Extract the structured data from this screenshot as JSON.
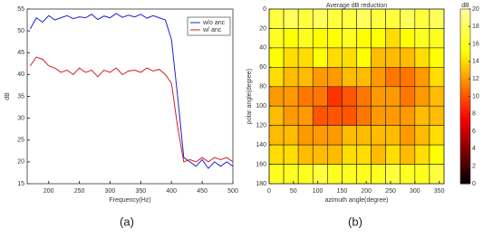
{
  "chart_data": [
    {
      "type": "line",
      "xlabel": "Frequency(Hz)",
      "ylabel": "dB",
      "caption": "(a)",
      "xlim": [
        165,
        500
      ],
      "xticks": [
        200,
        250,
        300,
        350,
        400,
        450,
        500
      ],
      "ylim": [
        15,
        55
      ],
      "yticks": [
        15,
        20,
        25,
        30,
        35,
        40,
        45,
        50,
        55
      ],
      "legend": "upper right",
      "x": [
        170,
        180,
        190,
        200,
        210,
        220,
        230,
        240,
        250,
        260,
        270,
        280,
        290,
        300,
        310,
        320,
        330,
        340,
        350,
        360,
        370,
        380,
        390,
        400,
        410,
        420,
        430,
        440,
        450,
        460,
        470,
        480,
        490,
        500
      ],
      "series": [
        {
          "name": "w/o anc",
          "color": "#2020d0",
          "values": [
            50.5,
            53,
            52,
            53.5,
            52.5,
            53,
            53.5,
            52.8,
            53.2,
            53,
            53.8,
            52.6,
            53.4,
            53,
            54,
            53.1,
            53.6,
            53.2,
            53.8,
            52.9,
            53.5,
            53,
            52.5,
            48,
            35,
            21,
            20,
            19,
            20.5,
            18.5,
            20,
            19,
            20,
            19
          ]
        },
        {
          "name": "w/ anc",
          "color": "#d02020",
          "values": [
            42,
            44,
            43.5,
            42,
            41.5,
            40.5,
            41,
            40,
            41.5,
            40.5,
            41,
            39.5,
            41,
            40.5,
            41.5,
            40,
            40.8,
            41,
            40.5,
            41.5,
            40.8,
            41.2,
            40,
            38,
            28,
            20,
            20.5,
            20,
            21,
            20,
            21,
            20.5,
            21,
            20
          ]
        }
      ]
    },
    {
      "type": "heatmap",
      "title": "Average dB reduction",
      "xlabel": "azimuth angle(degree)",
      "ylabel": "polar angle(degree)",
      "caption": "(b)",
      "xlim": [
        0,
        360
      ],
      "xticks": [
        0,
        50,
        100,
        150,
        200,
        250,
        300,
        350
      ],
      "ylim": [
        0,
        180
      ],
      "y_reversed": true,
      "yticks": [
        0,
        20,
        40,
        60,
        80,
        100,
        120,
        140,
        160,
        180
      ],
      "colormap": "hot",
      "zlim": [
        0,
        20
      ],
      "colorbar_label": "dB",
      "colorbar_ticks": [
        0,
        2,
        4,
        6,
        8,
        10,
        12,
        14,
        16,
        18,
        20
      ],
      "z": [
        [
          17,
          18,
          17,
          18,
          17,
          17,
          18,
          17,
          17,
          18,
          17,
          18
        ],
        [
          16,
          15,
          16,
          15,
          15,
          16,
          15,
          15,
          14,
          15,
          16,
          16
        ],
        [
          15,
          14,
          14,
          15,
          14,
          14,
          15,
          13,
          13,
          13,
          14,
          15
        ],
        [
          14,
          13,
          13,
          12,
          12,
          13,
          13,
          12,
          11,
          11,
          12,
          14
        ],
        [
          12,
          12,
          11,
          11,
          9,
          10,
          11,
          12,
          12,
          11,
          12,
          13
        ],
        [
          13,
          12,
          12,
          10,
          10,
          10,
          11,
          12,
          12,
          12,
          13,
          13
        ],
        [
          13,
          13,
          12,
          12,
          12,
          13,
          13,
          13,
          13,
          12,
          13,
          14
        ],
        [
          14,
          14,
          13,
          13,
          13,
          14,
          14,
          13,
          14,
          13,
          14,
          15
        ],
        [
          16,
          16,
          16,
          17,
          16,
          16,
          16,
          16,
          17,
          16,
          16,
          17
        ]
      ]
    }
  ]
}
